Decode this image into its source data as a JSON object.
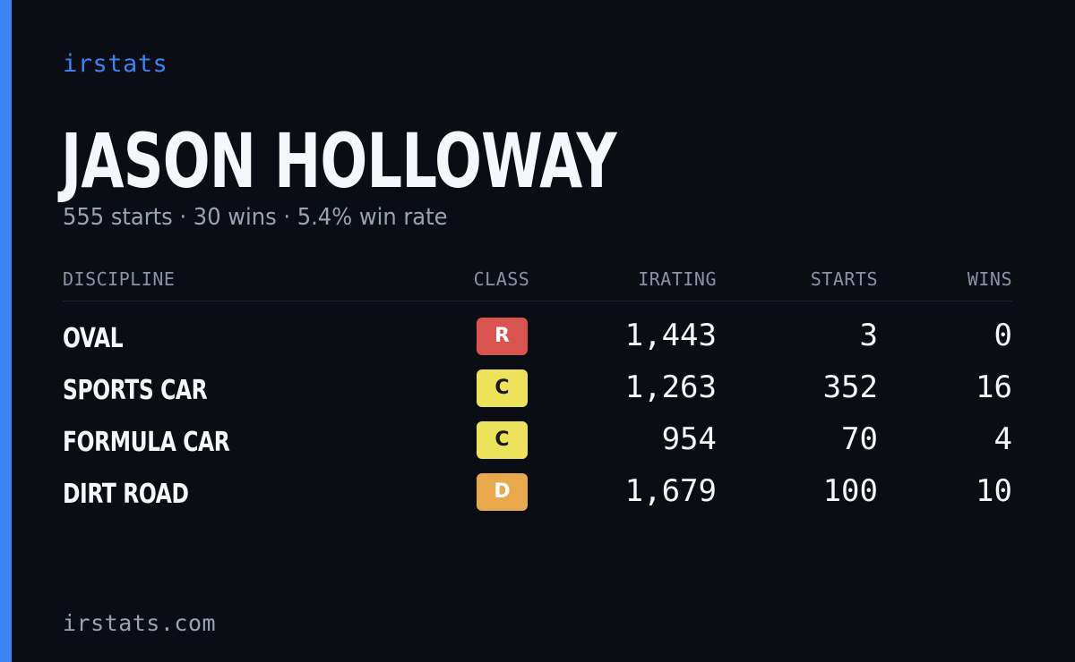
{
  "brand": "irstats",
  "driver": {
    "name": "JASON HOLLOWAY",
    "summary": "555 starts · 30 wins · 5.4% win rate"
  },
  "colors": {
    "accent": "#3b82f6",
    "background": "#0a0d14",
    "class_R": "#d9534f",
    "class_C": "#ede35a",
    "class_D": "#e8a94d"
  },
  "table": {
    "headers": {
      "discipline": "DISCIPLINE",
      "class": "CLASS",
      "irating": "IRATING",
      "starts": "STARTS",
      "wins": "WINS"
    },
    "rows": [
      {
        "discipline": "OVAL",
        "class": "R",
        "class_color": "#d9534f",
        "class_text_color": "#ffffff",
        "irating": "1,443",
        "starts": "3",
        "wins": "0"
      },
      {
        "discipline": "SPORTS CAR",
        "class": "C",
        "class_color": "#ede35a",
        "class_text_color": "#1a1a1a",
        "irating": "1,263",
        "starts": "352",
        "wins": "16"
      },
      {
        "discipline": "FORMULA CAR",
        "class": "C",
        "class_color": "#ede35a",
        "class_text_color": "#1a1a1a",
        "irating": "954",
        "starts": "70",
        "wins": "4"
      },
      {
        "discipline": "DIRT ROAD",
        "class": "D",
        "class_color": "#e8a94d",
        "class_text_color": "#ffffff",
        "irating": "1,679",
        "starts": "100",
        "wins": "10"
      }
    ]
  },
  "footer": "irstats.com"
}
